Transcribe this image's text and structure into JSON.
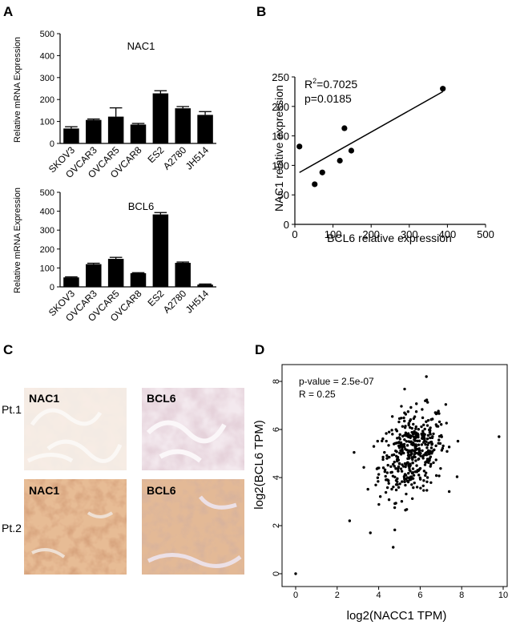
{
  "panels": {
    "A": "A",
    "B": "B",
    "C": "C",
    "D": "D"
  },
  "chart_data": [
    {
      "id": "A1",
      "type": "bar",
      "title": "NAC1",
      "ylabel": "Relative mRNA Expression",
      "ylim": [
        0,
        500
      ],
      "yticks": [
        0,
        100,
        200,
        300,
        400,
        500
      ],
      "categories": [
        "SKOV3",
        "OVCAR3",
        "OVCAR5",
        "OVCAR8",
        "ES2",
        "A2780",
        "JH514"
      ],
      "values": [
        68,
        107,
        122,
        86,
        228,
        160,
        130
      ],
      "errors": [
        8,
        4,
        40,
        5,
        12,
        8,
        15
      ]
    },
    {
      "id": "A2",
      "type": "bar",
      "title": "BCL6",
      "ylabel": "Relative mRNA Expression",
      "ylim": [
        0,
        500
      ],
      "yticks": [
        0,
        100,
        200,
        300,
        400,
        500
      ],
      "categories": [
        "SKOV3",
        "OVCAR3",
        "OVCAR5",
        "OVCAR8",
        "ES2",
        "A2780",
        "JH514"
      ],
      "values": [
        50,
        120,
        148,
        72,
        383,
        127,
        12
      ],
      "errors": [
        3,
        5,
        8,
        3,
        10,
        4,
        3
      ]
    },
    {
      "id": "B",
      "type": "scatter",
      "xlabel": "BCL6 relative expression",
      "ylabel": "NAC1 relative expression",
      "xlim": [
        0,
        500
      ],
      "ylim": [
        0,
        250
      ],
      "xticks": [
        0,
        100,
        200,
        300,
        400,
        500
      ],
      "yticks": [
        0,
        50,
        100,
        150,
        200,
        250
      ],
      "points": [
        [
          12,
          132
        ],
        [
          52,
          68
        ],
        [
          72,
          88
        ],
        [
          118,
          108
        ],
        [
          130,
          163
        ],
        [
          148,
          125
        ],
        [
          388,
          230
        ]
      ],
      "fit_line": {
        "x": [
          12,
          388
        ],
        "y": [
          88,
          225
        ]
      },
      "annotations": {
        "r2_prefix": "R",
        "r2_sup": "2",
        "r2_value": "=0.7025",
        "p": "p=0.0185"
      }
    },
    {
      "id": "D",
      "type": "scatter",
      "xlabel": "log2(NACC1 TPM)",
      "ylabel": "log2(BCL6 TPM)",
      "xlim": [
        0,
        10
      ],
      "ylim": [
        0,
        8.4
      ],
      "xticks": [
        0,
        2,
        4,
        6,
        8,
        10
      ],
      "yticks": [
        0,
        2,
        4,
        6,
        8
      ],
      "annotations": {
        "pvalue": "p-value = 2.5e-07",
        "r": "R = 0.25"
      },
      "n_points": 420,
      "center": [
        5.6,
        5.0
      ],
      "spread": [
        0.8,
        0.9
      ],
      "extra_points": [
        [
          0,
          0
        ],
        [
          6.3,
          8.2
        ],
        [
          4.7,
          1.1
        ],
        [
          2.6,
          2.2
        ],
        [
          9.8,
          5.7
        ],
        [
          3.6,
          1.7
        ]
      ]
    }
  ],
  "ihc": {
    "row_labels": [
      "Pt.1",
      "Pt.2"
    ],
    "col_labels": [
      "NAC1",
      "BCL6"
    ]
  }
}
